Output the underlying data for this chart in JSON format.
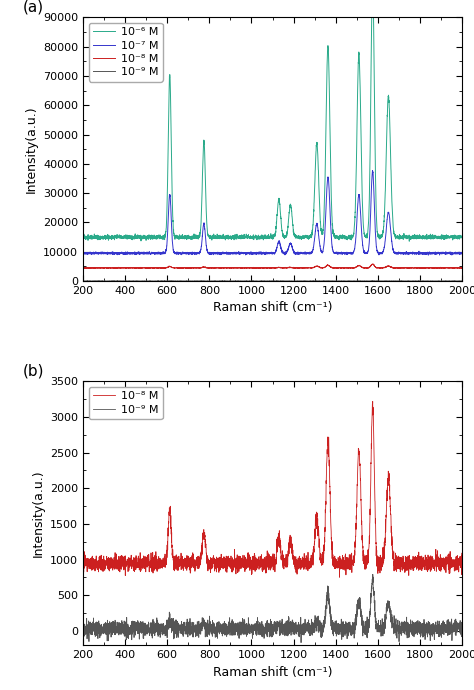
{
  "title_a": "(a)",
  "title_b": "(b)",
  "xlabel": "Raman shift (cm⁻¹)",
  "ylabel": "Intensity(a.u.)",
  "xlim": [
    200,
    2000
  ],
  "ylim_a": [
    0,
    90000
  ],
  "ylim_b": [
    -200,
    3500
  ],
  "yticks_a": [
    0,
    10000,
    20000,
    30000,
    40000,
    50000,
    60000,
    70000,
    80000,
    90000
  ],
  "yticks_b": [
    0,
    500,
    1000,
    1500,
    2000,
    2500,
    3000,
    3500
  ],
  "xticks": [
    200,
    400,
    600,
    800,
    1000,
    1200,
    1400,
    1600,
    1800,
    2000
  ],
  "colors": {
    "c1e6": "#2aaa8a",
    "c1e7": "#3535cc",
    "c1e8": "#cc2020",
    "c1e9": "#555555"
  },
  "legend_a": [
    "10⁻⁶ M",
    "10⁻⁷ M",
    "10⁻⁸ M",
    "10⁻⁹ M"
  ],
  "legend_b": [
    "10⁻⁸ M",
    "10⁻⁹ M"
  ],
  "r6g_peaks": [
    612,
    774,
    1130,
    1185,
    1310,
    1363,
    1510,
    1575,
    1650
  ],
  "peak_widths": [
    7,
    7,
    8,
    8,
    9,
    9,
    9,
    8,
    10
  ],
  "peak_heights_e6": [
    55000,
    33000,
    13000,
    11000,
    32000,
    65000,
    63000,
    87000,
    48000
  ],
  "peak_heights_e7": [
    20000,
    10000,
    4000,
    3500,
    10000,
    26000,
    20000,
    28000,
    14000
  ],
  "peak_heights_e8_a": [
    500,
    300,
    150,
    150,
    600,
    900,
    800,
    1300,
    600
  ],
  "peak_heights_e9_a": [
    20,
    10,
    5,
    5,
    20,
    30,
    25,
    40,
    20
  ],
  "baseline_e6": 15000,
  "baseline_e7": 9500,
  "baseline_e8_a": 4500,
  "baseline_e9_a": 30,
  "noise_e6": 350,
  "noise_e7": 180,
  "noise_e8_a": 60,
  "noise_e9_a": 20,
  "peak_heights_e8_b": [
    750,
    450,
    350,
    300,
    650,
    1750,
    1600,
    2200,
    1200
  ],
  "peak_heights_e9_b": [
    120,
    80,
    40,
    40,
    100,
    480,
    390,
    690,
    360
  ],
  "baseline_e8_b": 950,
  "baseline_e9_b": 30,
  "noise_e8_b": 55,
  "noise_e9_b": 55,
  "figsize": [
    4.74,
    6.9
  ],
  "dpi": 100
}
